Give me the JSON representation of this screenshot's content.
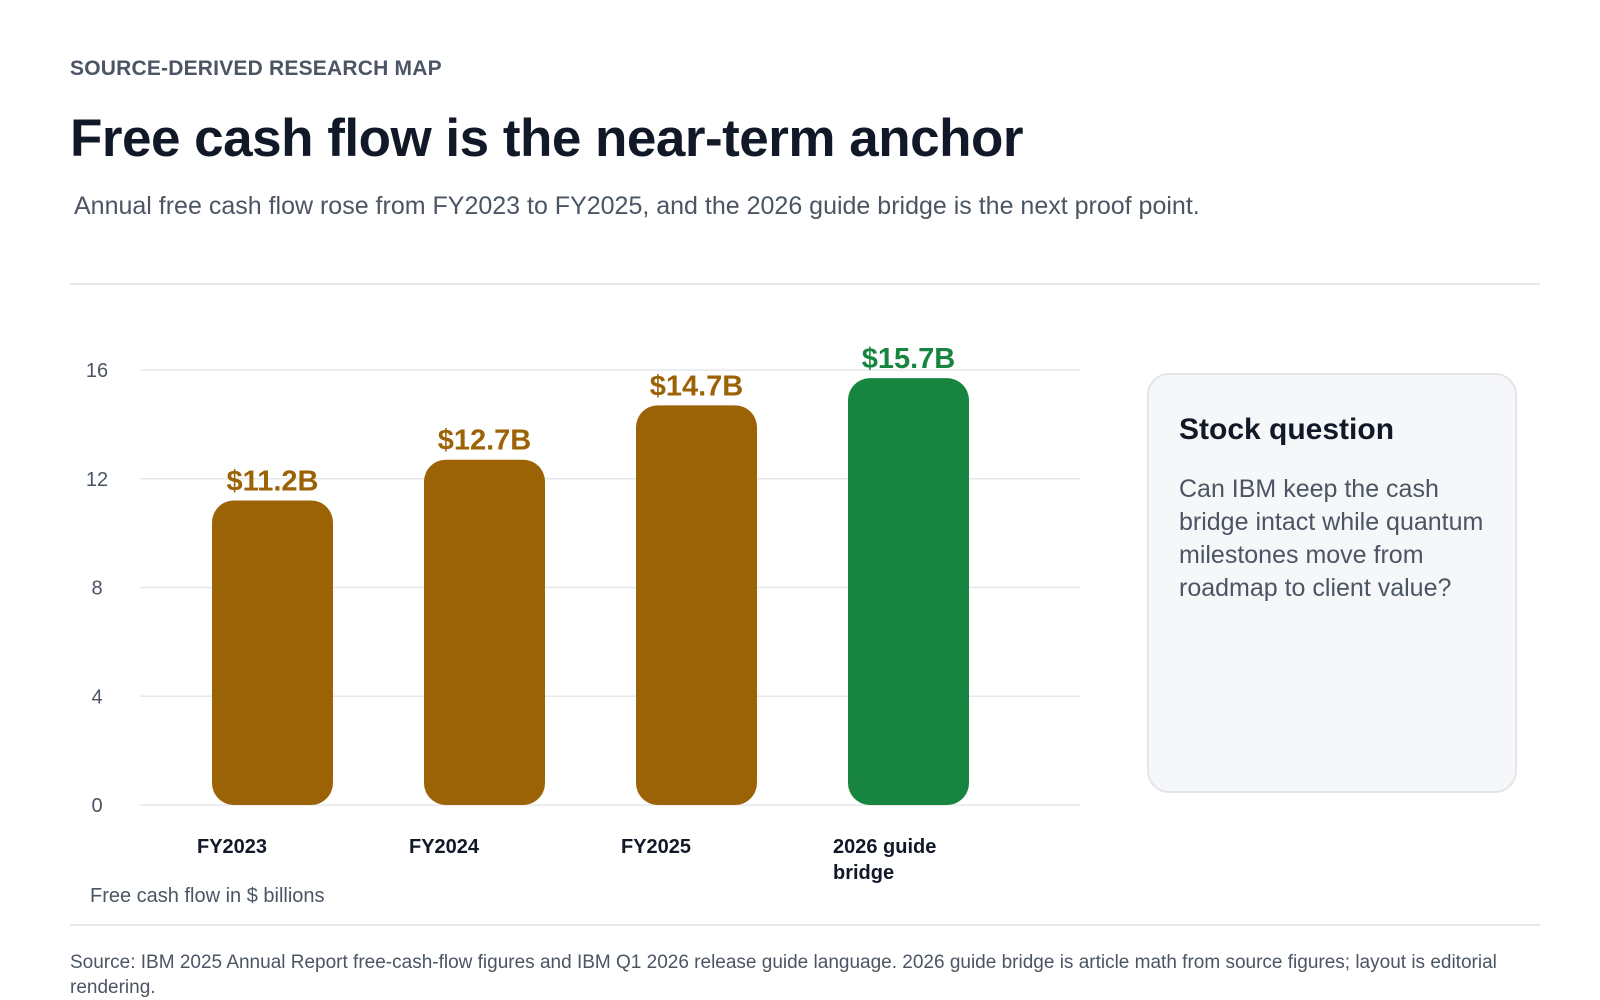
{
  "header": {
    "kicker": "SOURCE-DERIVED RESEARCH MAP",
    "title": "Free cash flow is the near-term anchor",
    "subtitle": "Annual free cash flow rose from FY2023 to FY2025, and the 2026 guide bridge is the next proof point."
  },
  "chart_data": {
    "type": "bar",
    "title": "",
    "xlabel": "",
    "ylabel": "",
    "unit_note": "Free cash flow in $ billions",
    "categories": [
      "FY2023",
      "FY2024",
      "FY2025",
      "2026 guide bridge"
    ],
    "values": [
      11.2,
      12.7,
      14.7,
      15.7
    ],
    "value_labels": [
      "$11.2B",
      "$12.7B",
      "$14.7B",
      "$15.7B"
    ],
    "bar_colors": [
      "#9c6206",
      "#9c6206",
      "#9c6206",
      "#178540"
    ],
    "ylim": [
      0,
      16
    ],
    "yticks": [
      0,
      4,
      8,
      12,
      16
    ],
    "grid": true
  },
  "callout": {
    "title": "Stock question",
    "body": "Can IBM keep the cash bridge intact while quantum milestones move from roadmap to client value?"
  },
  "footer": {
    "source": "Source: IBM 2025 Annual Report free-cash-flow figures and IBM Q1 2026 release guide language. 2026 guide bridge is article math from source figures; layout is editorial rendering."
  }
}
